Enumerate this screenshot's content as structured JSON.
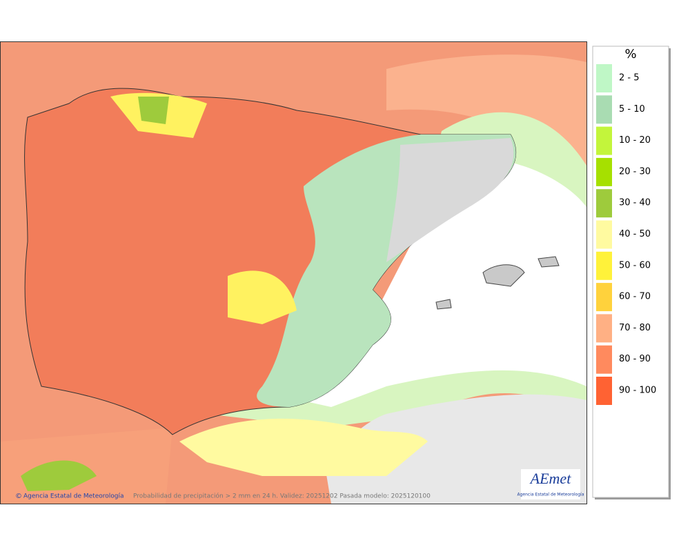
{
  "legend": {
    "title": "%",
    "items": [
      {
        "label": "2 - 5",
        "color": "#bff7c6"
      },
      {
        "label": "5 - 10",
        "color": "#a9dcb2"
      },
      {
        "label": "10 - 20",
        "color": "#c3f53b"
      },
      {
        "label": "20 - 30",
        "color": "#a6e000"
      },
      {
        "label": "30 - 40",
        "color": "#9ecb3c"
      },
      {
        "label": "40 - 50",
        "color": "#fffaa0"
      },
      {
        "label": "50 - 60",
        "color": "#fff23a"
      },
      {
        "label": "60 - 70",
        "color": "#ffd23c"
      },
      {
        "label": "70 - 80",
        "color": "#ffb084"
      },
      {
        "label": "80 - 90",
        "color": "#ff8a5e"
      },
      {
        "label": "90 - 100",
        "color": "#ff6233"
      }
    ]
  },
  "footer": {
    "credit": "Agencia Estatal de Meteorología",
    "caption": "Probabilidad de precipitación > 2 mm en 24 h. Validez: 20251202 Pasada modelo: 2025120100"
  },
  "logo": {
    "name": "AEmet",
    "subtitle": "Agencia Estatal de Meteorología"
  }
}
